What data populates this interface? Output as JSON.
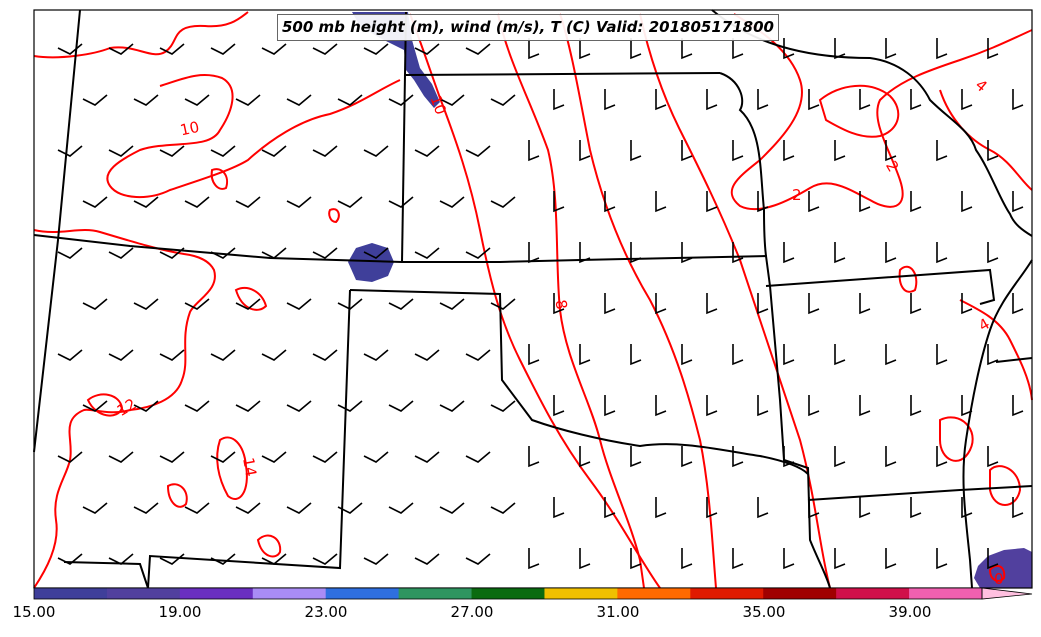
{
  "title": "500 mb height (m), wind (m/s), T (C) Valid: 201805171800",
  "contour_labels": [
    "10",
    "10",
    "2",
    "2",
    "4",
    "4",
    "8",
    "12",
    "14",
    "0"
  ],
  "colorbar": {
    "min": 15,
    "max": 41,
    "extend": "max",
    "tick_labels": [
      "15.00",
      "19.00",
      "23.00",
      "27.00",
      "31.00",
      "35.00",
      "39.00"
    ],
    "colors": [
      "#3f3f9a",
      "#51409e",
      "#6a2fc0",
      "#a98cf5",
      "#2f6fe0",
      "#2e9560",
      "#0a6b10",
      "#f0c000",
      "#ff6a00",
      "#e01a00",
      "#a00000",
      "#d0104a",
      "#f060b0",
      "#ffc0e0"
    ]
  },
  "colors": {
    "temperature_contour": "#ff0000",
    "state_border": "#000000",
    "wind_barb": "#000000",
    "shading": "#3f3f9a"
  },
  "fill_regions": [
    {
      "name": "northwest-corner-patch"
    },
    {
      "name": "center-west-patch"
    },
    {
      "name": "southeast-corner-patch"
    }
  ]
}
